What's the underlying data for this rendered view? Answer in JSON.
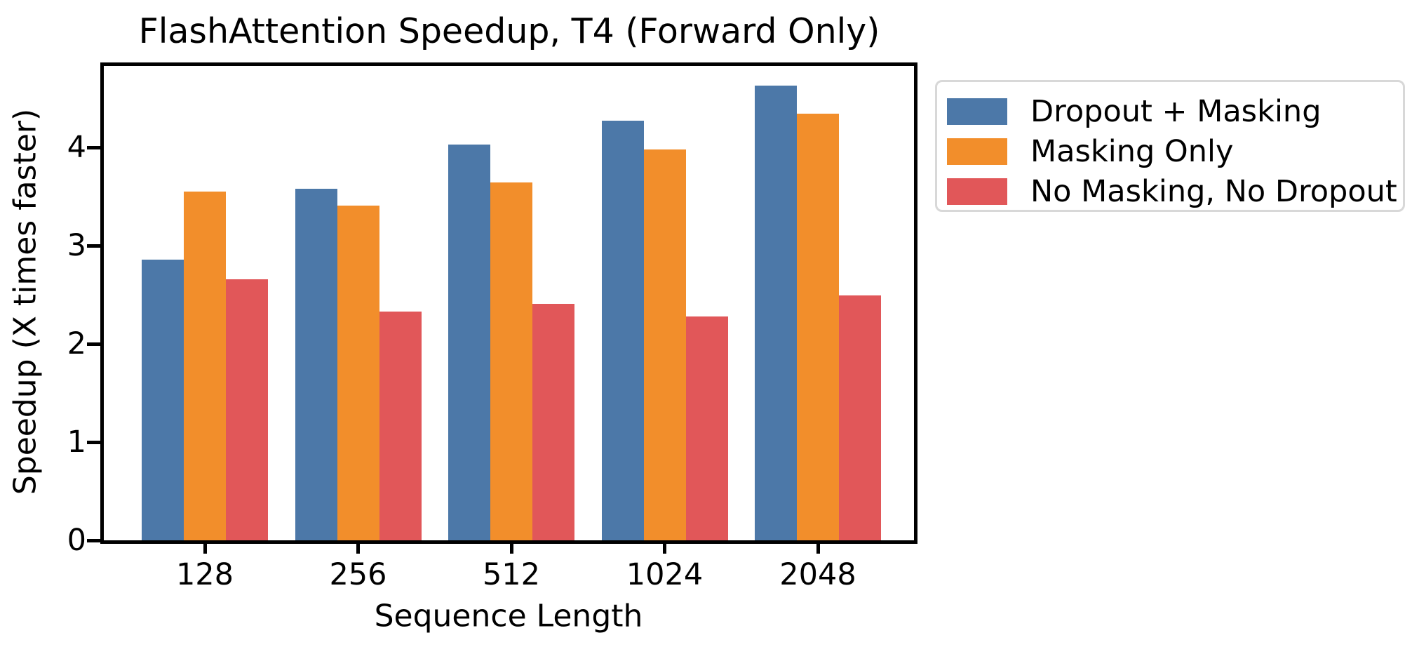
{
  "chart_data": {
    "type": "bar",
    "title": "FlashAttention Speedup, T4 (Forward Only)",
    "xlabel": "Sequence Length",
    "ylabel": "Speedup (X times faster)",
    "categories": [
      "128",
      "256",
      "512",
      "1024",
      "2048"
    ],
    "series": [
      {
        "name": "Dropout + Masking",
        "color": "#4C78A8",
        "values": [
          2.86,
          3.58,
          4.03,
          4.27,
          4.63
        ]
      },
      {
        "name": "Masking Only",
        "color": "#F28E2B",
        "values": [
          3.55,
          3.41,
          3.64,
          3.98,
          4.34
        ]
      },
      {
        "name": "No Masking, No Dropout",
        "color": "#E15759",
        "values": [
          2.66,
          2.33,
          2.41,
          2.28,
          2.49
        ]
      }
    ],
    "y_ticks": [
      "0",
      "1",
      "2",
      "3",
      "4"
    ],
    "ylim": [
      0,
      4.86
    ],
    "grid": false,
    "legend_position": "outside-right",
    "bar_orientation": "vertical"
  }
}
